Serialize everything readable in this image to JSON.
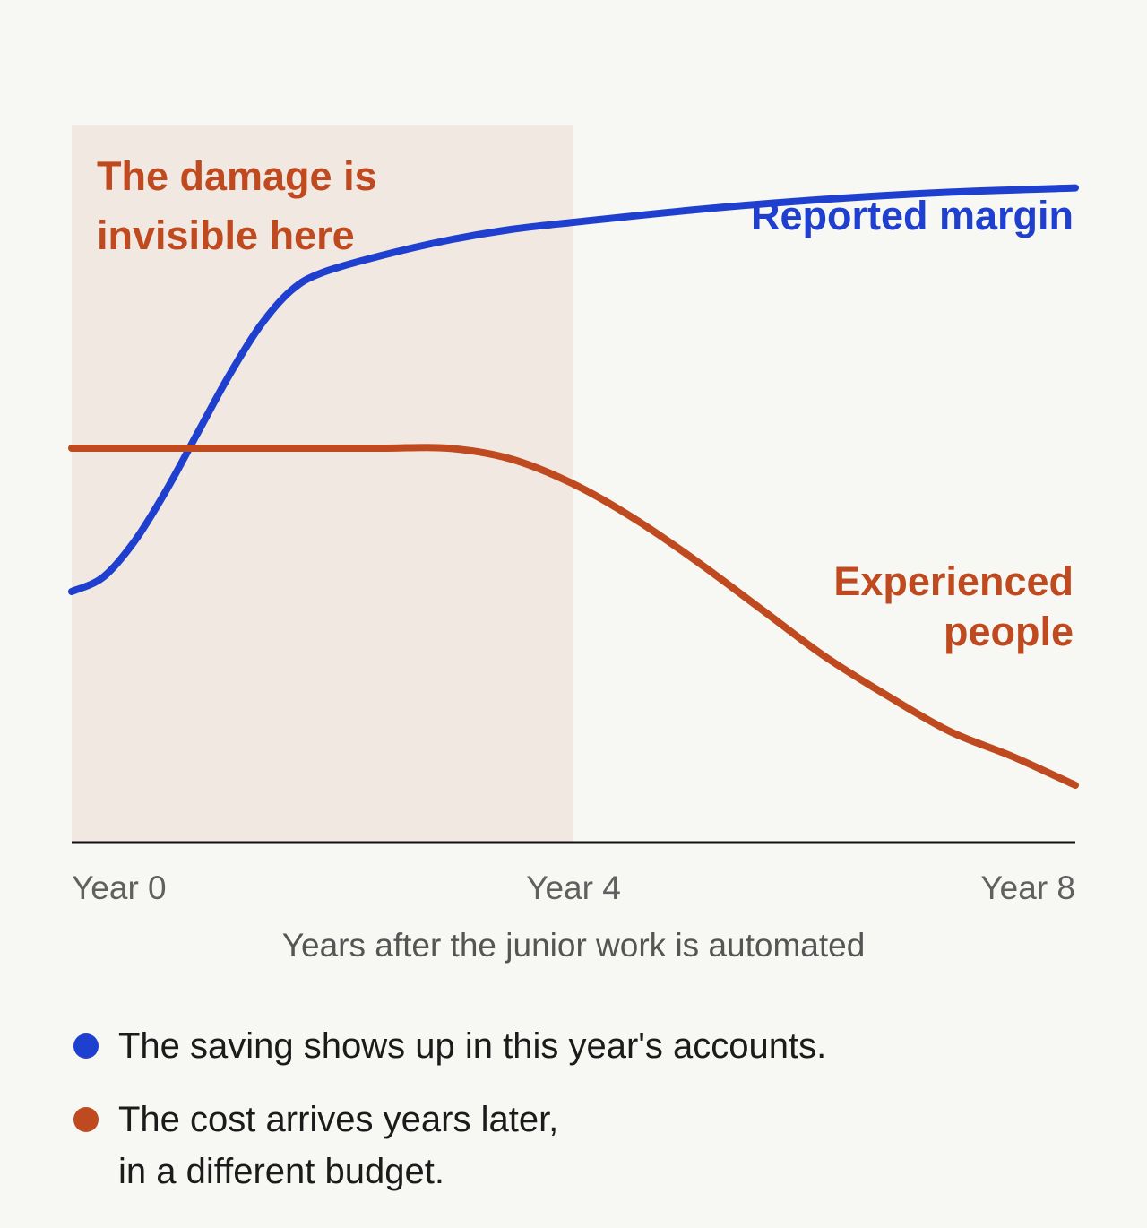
{
  "colors": {
    "background": "#f7f7f3",
    "shade": "#f1e8e2",
    "blue": "#1f3fce",
    "orange": "#bf4a1f",
    "axis": "#111111",
    "tick_text": "#606060"
  },
  "chart_data": {
    "type": "line",
    "x_label": "Years after the junior work is automated",
    "x_ticks": [
      {
        "value": 0,
        "label": "Year 0"
      },
      {
        "value": 4,
        "label": "Year 4"
      },
      {
        "value": 8,
        "label": "Year 8"
      }
    ],
    "xlim": [
      0,
      8
    ],
    "ylim": [
      0,
      100
    ],
    "grid": false,
    "y_axis_labels": false,
    "shaded_region": {
      "x_range": [
        0,
        4
      ],
      "label": "The damage is invisible here"
    },
    "series": [
      {
        "name": "Reported margin",
        "color": "#1f3fce",
        "x": [
          0,
          0.25,
          0.5,
          0.75,
          1.0,
          1.25,
          1.5,
          1.75,
          2.0,
          2.5,
          3.0,
          3.5,
          4.0,
          5.0,
          6.0,
          7.0,
          8.0
        ],
        "y": [
          35,
          37,
          42,
          49,
          57,
          65,
          72,
          77,
          79.5,
          82,
          84,
          85.5,
          86.5,
          88.3,
          89.7,
          90.7,
          91.3
        ]
      },
      {
        "name": "Experienced people",
        "color": "#bf4a1f",
        "x": [
          0,
          0.5,
          1.0,
          1.5,
          2.0,
          2.5,
          3.0,
          3.5,
          4.0,
          4.5,
          5.0,
          5.5,
          6.0,
          6.5,
          7.0,
          7.5,
          8.0
        ],
        "y": [
          55,
          55,
          55,
          55,
          55,
          55,
          55,
          53.5,
          50,
          45,
          39,
          32.5,
          26,
          20.5,
          15.5,
          12,
          8
        ]
      }
    ]
  },
  "legend": [
    {
      "color": "#1f3fce",
      "text": "The saving shows up in this year's accounts."
    },
    {
      "color": "#bf4a1f",
      "text": "The cost arrives years later,\nin a different budget."
    }
  ]
}
